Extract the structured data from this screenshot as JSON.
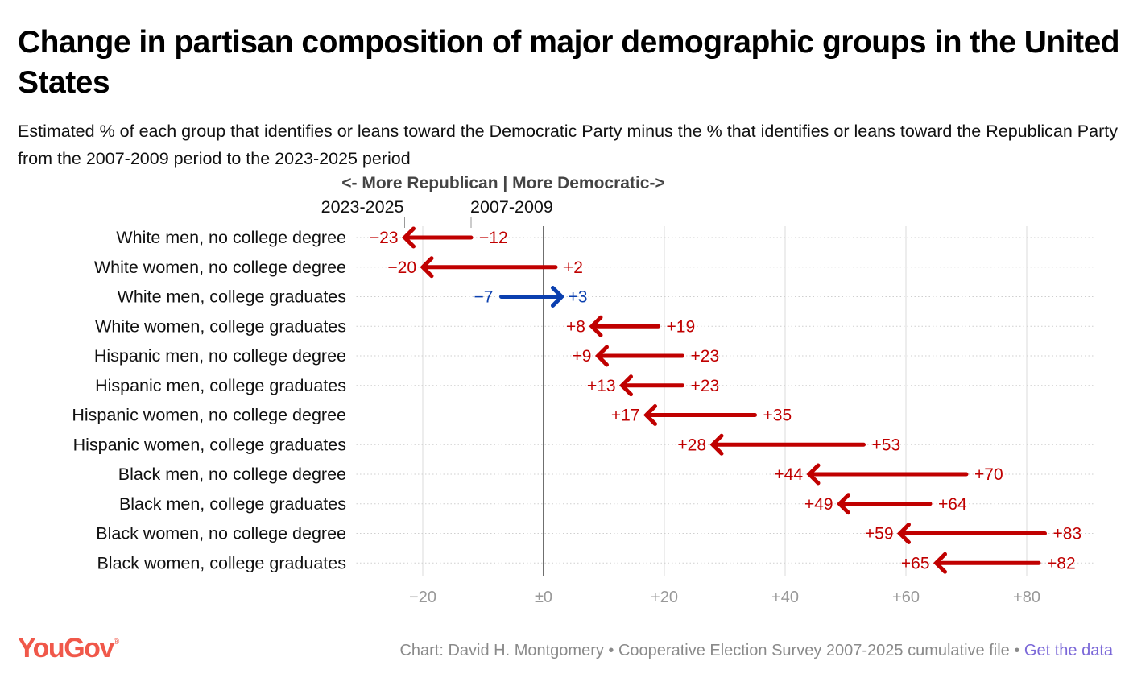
{
  "title": "Change in partisan composition of major demographic groups in the United States",
  "subtitle": "Estimated % of each group that identifies or leans toward the Democratic Party minus the % that identifies or leans toward the Republican Party from the 2007-2009 period to the 2023-2025 period",
  "footer": {
    "logo": "YouGov",
    "credit": "Chart: David H. Montgomery • Cooperative Election Survey 2007-2025 cumulative file • ",
    "link": "Get the data"
  },
  "colors": {
    "decrease": "#c00000",
    "increase": "#0a3faf",
    "axis": "#999999"
  },
  "chart_data": {
    "type": "arrow",
    "direction_label": "<- More Republican | More Democratic->",
    "start_label": "2007-2009",
    "end_label": "2023-2025",
    "xlim": [
      -31,
      91
    ],
    "xticks": [
      -20,
      0,
      20,
      40,
      60,
      80
    ],
    "xtick_labels": [
      "−20",
      "±0",
      "+20",
      "+40",
      "+60",
      "+80"
    ],
    "grid": true,
    "categories": [
      "White men, no college degree",
      "White women, no college degree",
      "White men, college graduates",
      "White women, college graduates",
      "Hispanic men, no college degree",
      "Hispanic men, college graduates",
      "Hispanic women, no college degree",
      "Hispanic women, college graduates",
      "Black men, no college degree",
      "Black men, college graduates",
      "Black women, no college degree",
      "Black women, college graduates"
    ],
    "series": [
      {
        "name": "2007-2009",
        "values": [
          -12,
          2,
          -7,
          19,
          23,
          23,
          35,
          53,
          70,
          64,
          83,
          82
        ]
      },
      {
        "name": "2023-2025",
        "values": [
          -23,
          -20,
          3,
          8,
          9,
          13,
          17,
          28,
          44,
          49,
          59,
          65
        ]
      }
    ],
    "start_value_labels": [
      "−12",
      "+2",
      "−7",
      "+19",
      "+23",
      "+23",
      "+35",
      "+53",
      "+70",
      "+64",
      "+83",
      "+82"
    ],
    "end_value_labels": [
      "−23",
      "−20",
      "+3",
      "+8",
      "+9",
      "+13",
      "+17",
      "+28",
      "+44",
      "+49",
      "+59",
      "+65"
    ]
  }
}
